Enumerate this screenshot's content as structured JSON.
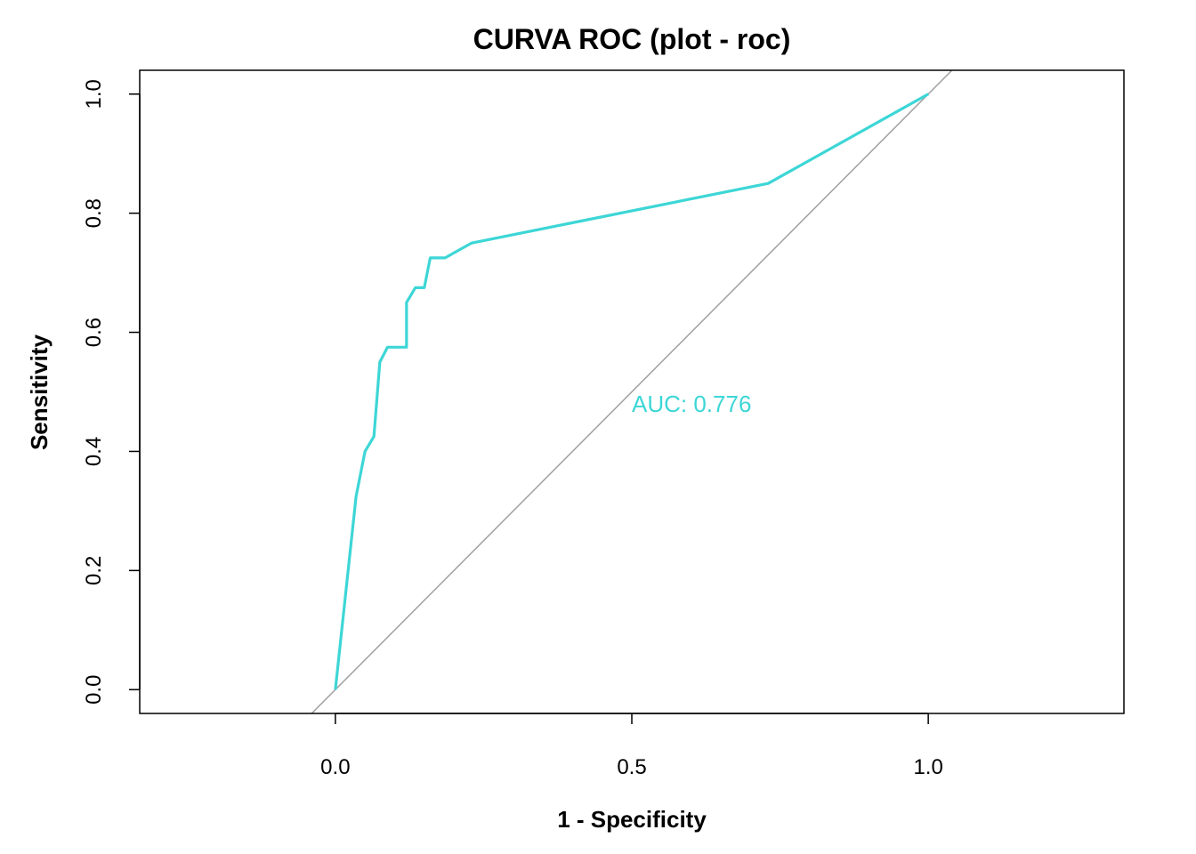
{
  "chart_data": {
    "type": "line",
    "title": "CURVA ROC (plot - roc)",
    "xlabel": "1 - Specificity",
    "ylabel": "Sensitivity",
    "xlim": [
      -0.33,
      1.33
    ],
    "ylim": [
      -0.04,
      1.04
    ],
    "x_ticks": [
      0.0,
      0.5,
      1.0
    ],
    "x_tick_labels": [
      "0.0",
      "0.5",
      "1.0"
    ],
    "y_ticks": [
      0.0,
      0.2,
      0.4,
      0.6,
      0.8,
      1.0
    ],
    "y_tick_labels": [
      "0.0",
      "0.2",
      "0.4",
      "0.6",
      "0.8",
      "1.0"
    ],
    "grid": false,
    "legend": "none",
    "series": [
      {
        "color": "#3dd6d6",
        "x": [
          0.0,
          0.035,
          0.05,
          0.065,
          0.075,
          0.088,
          0.12,
          0.12,
          0.135,
          0.15,
          0.16,
          0.185,
          0.23,
          0.73,
          1.0
        ],
        "y": [
          0.0,
          0.325,
          0.4,
          0.425,
          0.55,
          0.575,
          0.575,
          0.65,
          0.675,
          0.675,
          0.725,
          0.725,
          0.75,
          0.85,
          1.0
        ]
      }
    ],
    "reference_line": {
      "from": [
        -0.04,
        -0.04
      ],
      "to": [
        1.04,
        1.04
      ],
      "color": "#a0a0a0"
    },
    "annotations": [
      {
        "text": "AUC: 0.776",
        "x": 0.5,
        "y": 0.48,
        "color": "#3dd6d6"
      }
    ]
  }
}
